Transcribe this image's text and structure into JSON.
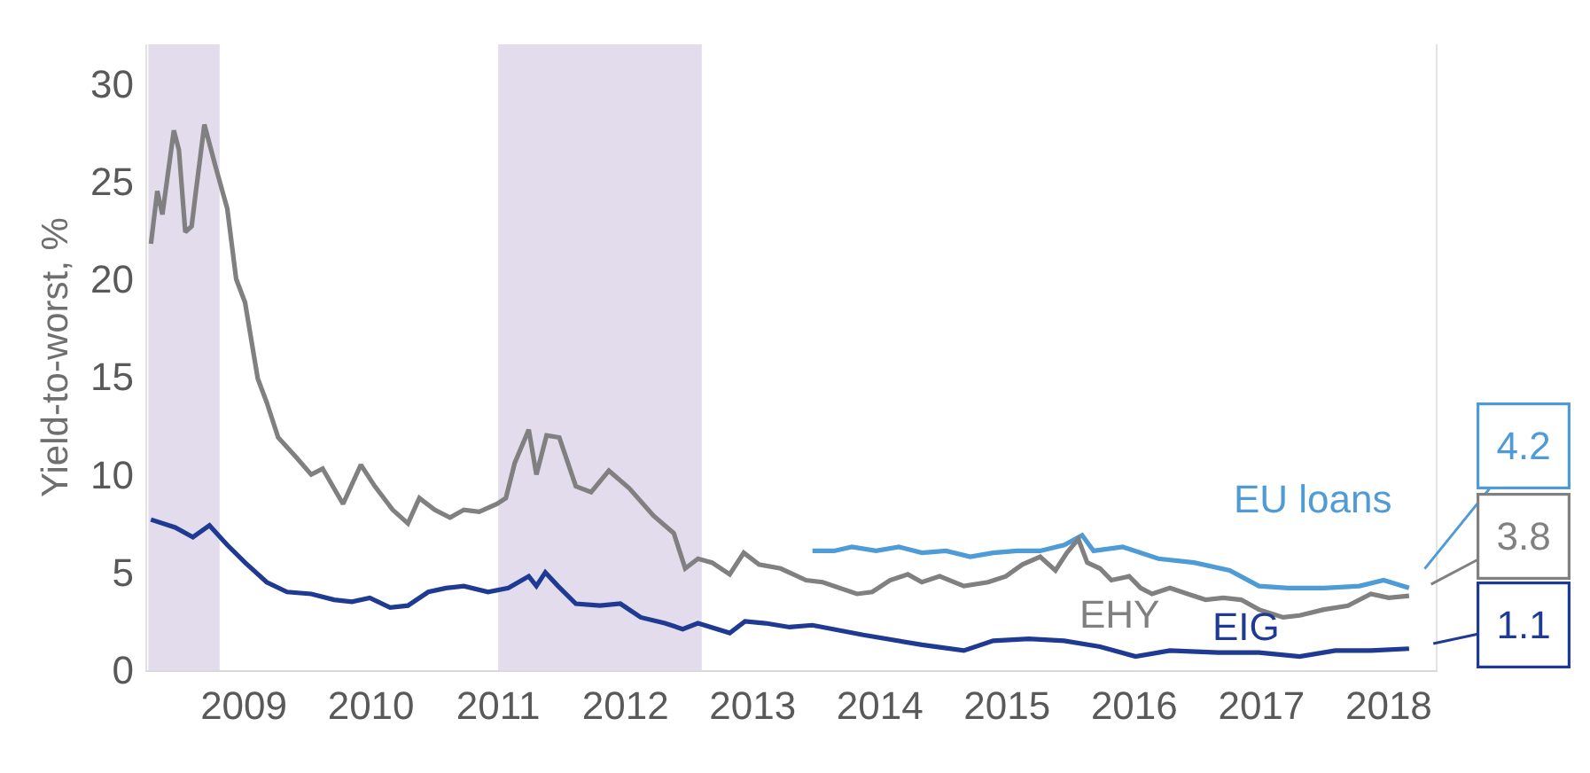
{
  "chart_data": {
    "type": "line",
    "ylabel": "Yield-to-worst, %",
    "xlim": [
      2008.24,
      2018.37
    ],
    "xticks": [
      2009,
      2010,
      2011,
      2012,
      2013,
      2014,
      2015,
      2016,
      2017,
      2018
    ],
    "ylim": [
      0,
      32
    ],
    "yticks": [
      0,
      5,
      10,
      15,
      20,
      25,
      30
    ],
    "grid": false,
    "bands": [
      {
        "axis": "x",
        "from": 2008.25,
        "to": 2008.81,
        "color": "#e2dcec"
      },
      {
        "axis": "x",
        "from": 2011.0,
        "to": 2012.6,
        "color": "#e2dcec"
      }
    ],
    "series": [
      {
        "name": "EU loans",
        "color": "#4f9bd6",
        "x": [
          2013.47,
          2013.64,
          2013.78,
          2013.97,
          2014.15,
          2014.33,
          2014.52,
          2014.71,
          2014.89,
          2015.08,
          2015.26,
          2015.45,
          2015.59,
          2015.68,
          2015.91,
          2016.19,
          2016.47,
          2016.75,
          2016.98,
          2017.21,
          2017.49,
          2017.77,
          2017.96,
          2018.16
        ],
        "values": [
          6.1,
          6.1,
          6.3,
          6.1,
          6.3,
          6.0,
          6.1,
          5.8,
          6.0,
          6.1,
          6.1,
          6.4,
          6.9,
          6.1,
          6.3,
          5.7,
          5.5,
          5.1,
          4.3,
          4.2,
          4.2,
          4.3,
          4.6,
          4.2
        ],
        "value_labels": [
          null,
          null,
          null,
          null,
          null,
          null,
          null,
          null,
          null,
          null,
          null,
          null,
          null,
          null,
          null,
          null,
          null,
          null,
          null,
          null,
          null,
          null,
          null,
          "4.2"
        ]
      },
      {
        "name": "EHY",
        "color": "#808080",
        "x": [
          2008.27,
          2008.32,
          2008.36,
          2008.45,
          2008.49,
          2008.54,
          2008.59,
          2008.62,
          2008.69,
          2008.78,
          2008.87,
          2008.94,
          2009.01,
          2009.11,
          2009.18,
          2009.27,
          2009.41,
          2009.53,
          2009.62,
          2009.78,
          2009.92,
          2010.03,
          2010.17,
          2010.29,
          2010.38,
          2010.5,
          2010.62,
          2010.73,
          2010.85,
          2010.99,
          2011.06,
          2011.13,
          2011.24,
          2011.3,
          2011.38,
          2011.48,
          2011.61,
          2011.73,
          2011.87,
          2012.03,
          2012.22,
          2012.38,
          2012.47,
          2012.57,
          2012.68,
          2012.82,
          2012.93,
          2013.05,
          2013.22,
          2013.42,
          2013.55,
          2013.82,
          2013.94,
          2014.08,
          2014.22,
          2014.33,
          2014.47,
          2014.66,
          2014.85,
          2014.99,
          2015.12,
          2015.26,
          2015.38,
          2015.47,
          2015.56,
          2015.63,
          2015.73,
          2015.82,
          2015.96,
          2016.05,
          2016.14,
          2016.28,
          2016.42,
          2016.56,
          2016.7,
          2016.84,
          2016.98,
          2017.17,
          2017.3,
          2017.49,
          2017.68,
          2017.86,
          2018.0,
          2018.16
        ],
        "values": [
          21.8,
          24.5,
          23.3,
          27.6,
          26.6,
          22.4,
          22.7,
          24.3,
          27.9,
          25.7,
          23.6,
          20.0,
          18.8,
          14.9,
          13.7,
          11.9,
          10.9,
          10.0,
          10.3,
          8.5,
          10.5,
          9.4,
          8.2,
          7.5,
          8.8,
          8.2,
          7.8,
          8.2,
          8.1,
          8.5,
          8.8,
          10.6,
          12.3,
          10.0,
          12.0,
          11.9,
          9.4,
          9.1,
          10.2,
          9.3,
          7.9,
          7.0,
          5.2,
          5.7,
          5.5,
          4.9,
          6.0,
          5.4,
          5.2,
          4.6,
          4.5,
          3.9,
          4.0,
          4.6,
          4.9,
          4.5,
          4.8,
          4.3,
          4.5,
          4.8,
          5.4,
          5.8,
          5.1,
          6.0,
          6.7,
          5.5,
          5.2,
          4.6,
          4.8,
          4.2,
          3.9,
          4.2,
          3.9,
          3.6,
          3.7,
          3.6,
          3.1,
          2.7,
          2.8,
          3.1,
          3.3,
          3.9,
          3.7,
          3.8
        ],
        "value_labels": [
          null,
          null,
          null,
          null,
          null,
          null,
          null,
          null,
          null,
          null,
          null,
          null,
          null,
          null,
          null,
          null,
          null,
          null,
          null,
          null,
          null,
          null,
          null,
          null,
          null,
          null,
          null,
          null,
          null,
          null,
          null,
          null,
          null,
          null,
          null,
          null,
          null,
          null,
          null,
          null,
          null,
          null,
          null,
          null,
          null,
          null,
          null,
          null,
          null,
          null,
          null,
          null,
          null,
          null,
          null,
          null,
          null,
          null,
          null,
          null,
          null,
          null,
          null,
          null,
          null,
          null,
          null,
          null,
          null,
          null,
          null,
          null,
          null,
          null,
          null,
          null,
          null,
          null,
          null,
          null,
          null,
          null,
          null,
          "3.8"
        ]
      },
      {
        "name": "EIG",
        "color": "#1f3a93",
        "x": [
          2008.27,
          2008.46,
          2008.6,
          2008.73,
          2008.87,
          2009.01,
          2009.18,
          2009.34,
          2009.53,
          2009.71,
          2009.85,
          2009.99,
          2010.15,
          2010.29,
          2010.45,
          2010.59,
          2010.73,
          2010.92,
          2011.08,
          2011.24,
          2011.3,
          2011.37,
          2011.47,
          2011.61,
          2011.8,
          2011.96,
          2012.12,
          2012.31,
          2012.45,
          2012.57,
          2012.82,
          2012.94,
          2013.1,
          2013.29,
          2013.47,
          2013.87,
          2014.33,
          2014.66,
          2014.89,
          2015.17,
          2015.45,
          2015.73,
          2016.01,
          2016.28,
          2016.66,
          2016.98,
          2017.3,
          2017.58,
          2017.86,
          2018.16
        ],
        "values": [
          7.7,
          7.3,
          6.8,
          7.4,
          6.4,
          5.5,
          4.5,
          4.0,
          3.9,
          3.6,
          3.5,
          3.7,
          3.2,
          3.3,
          4.0,
          4.2,
          4.3,
          4.0,
          4.2,
          4.8,
          4.3,
          5.0,
          4.3,
          3.4,
          3.3,
          3.4,
          2.7,
          2.4,
          2.1,
          2.4,
          1.9,
          2.5,
          2.4,
          2.2,
          2.3,
          1.8,
          1.3,
          1.0,
          1.5,
          1.6,
          1.5,
          1.2,
          0.7,
          1.0,
          0.9,
          0.9,
          0.7,
          1.0,
          1.0,
          1.1
        ],
        "value_labels": [
          null,
          null,
          null,
          null,
          null,
          null,
          null,
          null,
          null,
          null,
          null,
          null,
          null,
          null,
          null,
          null,
          null,
          null,
          null,
          null,
          null,
          null,
          null,
          null,
          null,
          null,
          null,
          null,
          null,
          null,
          null,
          null,
          null,
          null,
          null,
          null,
          null,
          null,
          null,
          null,
          null,
          null,
          null,
          null,
          null,
          null,
          null,
          null,
          null,
          "1.1"
        ]
      }
    ]
  }
}
